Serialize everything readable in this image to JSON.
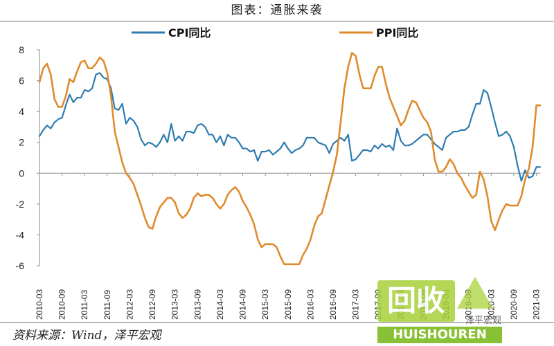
{
  "title": "图表：通胀来袭",
  "source": "资料来源：Wind，泽平宏观",
  "watermark": {
    "logo_text": "回收",
    "site_text": "HUISHOUREN",
    "wechat_text": "泽平宏观"
  },
  "chart_data": {
    "type": "line",
    "title": "图表：通胀来袭",
    "xlabel": "",
    "ylabel": "",
    "ylim": [
      -6,
      8
    ],
    "yticks": [
      8,
      6,
      4,
      2,
      0,
      -2,
      -4,
      -6
    ],
    "grid": false,
    "legend_position": "top",
    "x_tick_labels": [
      "2010-03",
      "2010-09",
      "2011-03",
      "2011-09",
      "2012-03",
      "2012-09",
      "2013-03",
      "2013-09",
      "2014-03",
      "2014-09",
      "2015-03",
      "2015-09",
      "2016-03",
      "2016-09",
      "2017-03",
      "2017-09",
      "2018-03",
      "2018-09",
      "2019-03",
      "2019-09",
      "2020-03",
      "2020-09",
      "2021-03"
    ],
    "x": [
      "2010-03",
      "2010-04",
      "2010-05",
      "2010-06",
      "2010-07",
      "2010-08",
      "2010-09",
      "2010-10",
      "2010-11",
      "2010-12",
      "2011-01",
      "2011-02",
      "2011-03",
      "2011-04",
      "2011-05",
      "2011-06",
      "2011-07",
      "2011-08",
      "2011-09",
      "2011-10",
      "2011-11",
      "2011-12",
      "2012-01",
      "2012-02",
      "2012-03",
      "2012-04",
      "2012-05",
      "2012-06",
      "2012-07",
      "2012-08",
      "2012-09",
      "2012-10",
      "2012-11",
      "2012-12",
      "2013-01",
      "2013-02",
      "2013-03",
      "2013-04",
      "2013-05",
      "2013-06",
      "2013-07",
      "2013-08",
      "2013-09",
      "2013-10",
      "2013-11",
      "2013-12",
      "2014-01",
      "2014-02",
      "2014-03",
      "2014-04",
      "2014-05",
      "2014-06",
      "2014-07",
      "2014-08",
      "2014-09",
      "2014-10",
      "2014-11",
      "2014-12",
      "2015-01",
      "2015-02",
      "2015-03",
      "2015-04",
      "2015-05",
      "2015-06",
      "2015-07",
      "2015-08",
      "2015-09",
      "2015-10",
      "2015-11",
      "2015-12",
      "2016-01",
      "2016-02",
      "2016-03",
      "2016-04",
      "2016-05",
      "2016-06",
      "2016-07",
      "2016-08",
      "2016-09",
      "2016-10",
      "2016-11",
      "2016-12",
      "2017-01",
      "2017-02",
      "2017-03",
      "2017-04",
      "2017-05",
      "2017-06",
      "2017-07",
      "2017-08",
      "2017-09",
      "2017-10",
      "2017-11",
      "2017-12",
      "2018-01",
      "2018-02",
      "2018-03",
      "2018-04",
      "2018-05",
      "2018-06",
      "2018-07",
      "2018-08",
      "2018-09",
      "2018-10",
      "2018-11",
      "2018-12",
      "2019-01",
      "2019-02",
      "2019-03",
      "2019-04",
      "2019-05",
      "2019-06",
      "2019-07",
      "2019-08",
      "2019-09",
      "2019-10",
      "2019-11",
      "2019-12",
      "2020-01",
      "2020-02",
      "2020-03",
      "2020-04",
      "2020-05",
      "2020-06",
      "2020-07",
      "2020-08",
      "2020-09",
      "2020-10",
      "2020-11",
      "2020-12",
      "2021-01",
      "2021-02",
      "2021-03",
      "2021-04"
    ],
    "series": [
      {
        "name": "CPI同比",
        "color": "#2e7bb0",
        "values": [
          2.4,
          2.8,
          3.1,
          2.9,
          3.3,
          3.5,
          3.6,
          4.4,
          5.1,
          4.6,
          4.9,
          4.9,
          5.4,
          5.3,
          5.5,
          6.4,
          6.5,
          6.2,
          6.1,
          5.5,
          4.2,
          4.1,
          4.5,
          3.2,
          3.6,
          3.4,
          3.0,
          2.2,
          1.8,
          2.0,
          1.9,
          1.7,
          2.0,
          2.5,
          2.0,
          3.2,
          2.1,
          2.4,
          2.1,
          2.7,
          2.7,
          2.6,
          3.1,
          3.2,
          3.0,
          2.5,
          2.5,
          2.0,
          2.4,
          1.8,
          2.5,
          2.3,
          2.3,
          2.0,
          1.6,
          1.6,
          1.4,
          1.5,
          0.8,
          1.4,
          1.4,
          1.5,
          1.2,
          1.4,
          1.6,
          2.0,
          1.6,
          1.3,
          1.5,
          1.6,
          1.8,
          2.3,
          2.3,
          2.3,
          2.0,
          1.9,
          1.8,
          1.3,
          1.9,
          2.1,
          2.3,
          2.1,
          2.5,
          0.8,
          0.9,
          1.2,
          1.5,
          1.5,
          1.4,
          1.8,
          1.6,
          1.9,
          1.7,
          1.8,
          1.5,
          2.9,
          2.1,
          1.8,
          1.8,
          1.9,
          2.1,
          2.3,
          2.5,
          2.5,
          2.2,
          1.9,
          1.7,
          1.5,
          2.3,
          2.5,
          2.7,
          2.7,
          2.8,
          2.8,
          3.0,
          3.8,
          4.5,
          4.5,
          5.4,
          5.2,
          4.3,
          3.3,
          2.4,
          2.5,
          2.7,
          2.4,
          1.7,
          0.5,
          -0.5,
          0.2,
          -0.3,
          -0.2,
          0.4,
          0.4
        ]
      },
      {
        "name": "PPI同比",
        "color": "#e08a2c",
        "values": [
          5.9,
          6.8,
          7.1,
          6.4,
          4.8,
          4.3,
          4.3,
          5.0,
          6.1,
          5.9,
          6.6,
          7.2,
          7.3,
          6.8,
          6.8,
          7.1,
          7.5,
          7.3,
          6.5,
          5.0,
          2.7,
          1.7,
          0.7,
          0.0,
          -0.3,
          -0.7,
          -1.4,
          -2.1,
          -2.9,
          -3.5,
          -3.6,
          -2.8,
          -2.2,
          -1.9,
          -1.6,
          -1.6,
          -1.9,
          -2.6,
          -2.9,
          -2.7,
          -2.3,
          -1.6,
          -1.3,
          -1.5,
          -1.4,
          -1.4,
          -1.6,
          -2.0,
          -2.3,
          -2.0,
          -1.4,
          -1.1,
          -0.9,
          -1.2,
          -1.8,
          -2.2,
          -2.7,
          -3.3,
          -4.3,
          -4.8,
          -4.6,
          -4.6,
          -4.6,
          -4.8,
          -5.4,
          -5.9,
          -5.9,
          -5.9,
          -5.9,
          -5.9,
          -5.3,
          -4.9,
          -4.3,
          -3.4,
          -2.8,
          -2.6,
          -1.7,
          -0.8,
          0.1,
          1.2,
          3.3,
          5.5,
          6.9,
          7.8,
          7.6,
          6.4,
          5.5,
          5.5,
          5.5,
          6.3,
          6.9,
          6.9,
          5.8,
          4.9,
          4.3,
          3.7,
          3.1,
          3.4,
          4.1,
          4.7,
          4.6,
          4.1,
          3.6,
          3.3,
          2.7,
          0.9,
          0.1,
          0.1,
          0.4,
          0.9,
          0.6,
          0.0,
          -0.3,
          -0.8,
          -1.2,
          -1.6,
          -1.4,
          0.1,
          -0.4,
          -1.5,
          -3.1,
          -3.7,
          -3.0,
          -2.4,
          -2.0,
          -2.1,
          -2.1,
          -2.1,
          -1.5,
          -0.4,
          0.3,
          1.7,
          4.4,
          4.4
        ]
      }
    ]
  }
}
